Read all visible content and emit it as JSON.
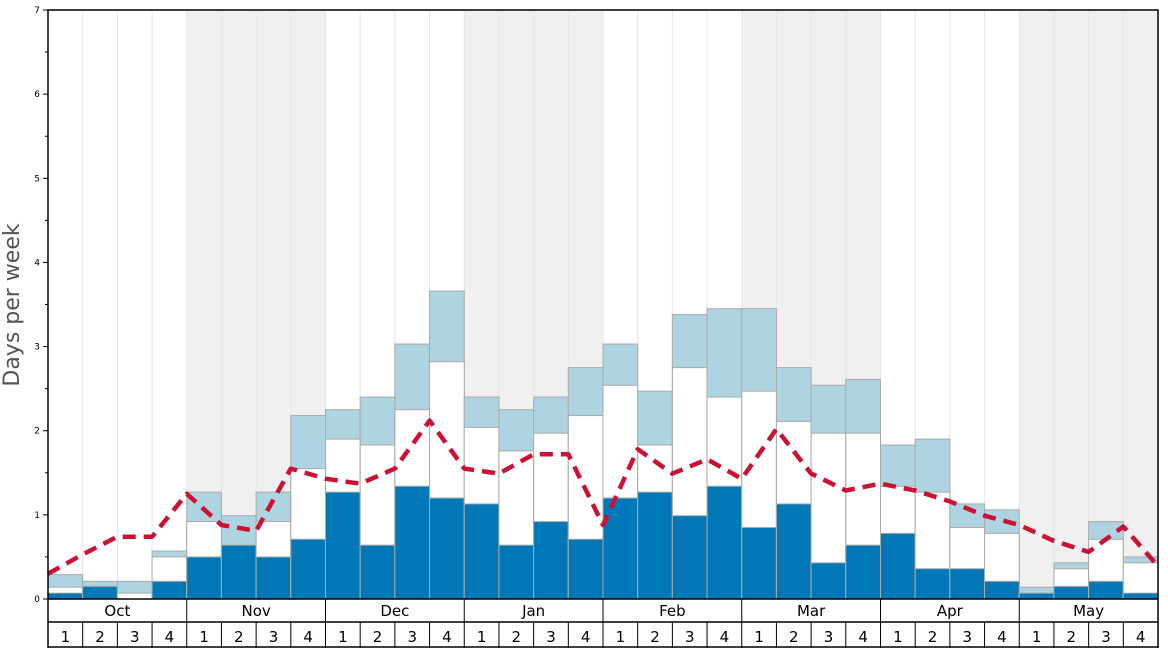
{
  "chart_data": {
    "type": "bar",
    "ylabel": "Days per week",
    "ylim": [
      0,
      7
    ],
    "yticks": [
      "0",
      "1",
      "2",
      "3",
      "4",
      "5",
      "6",
      "7"
    ],
    "months": [
      "Oct",
      "Nov",
      "Dec",
      "Jan",
      "Feb",
      "Mar",
      "Apr",
      "May"
    ],
    "weeks": [
      "1",
      "2",
      "3",
      "4"
    ],
    "colors": {
      "lower": "#0077b6",
      "middle": "#ffffff",
      "upper": "#add4e0",
      "line": "#cc1133",
      "shade": "#f0f0f0",
      "bar_edge": "#aaaaaa"
    },
    "series": [
      {
        "values": [
          0.07,
          0.15,
          0.0,
          0.21,
          0.5,
          0.64,
          0.5,
          0.71,
          1.27,
          0.64,
          1.34,
          1.2,
          1.13,
          0.64,
          0.92,
          0.71,
          1.2,
          1.27,
          0.99,
          1.34,
          0.85,
          1.13,
          0.43,
          0.64,
          0.78,
          0.36,
          0.36,
          0.21,
          0.07,
          0.15,
          0.21,
          0.07
        ]
      },
      {
        "values": [
          0.14,
          0.15,
          0.07,
          0.5,
          0.92,
          0.64,
          0.92,
          1.55,
          1.9,
          1.83,
          2.25,
          2.82,
          2.04,
          1.76,
          1.97,
          2.18,
          2.54,
          1.83,
          2.75,
          2.4,
          2.47,
          2.11,
          1.97,
          1.97,
          1.34,
          1.27,
          0.85,
          0.78,
          0.07,
          0.36,
          0.71,
          0.43
        ]
      },
      {
        "values": [
          0.29,
          0.21,
          0.21,
          0.57,
          1.27,
          0.99,
          1.27,
          2.18,
          2.25,
          2.4,
          3.03,
          3.66,
          2.4,
          2.25,
          2.4,
          2.75,
          3.03,
          2.47,
          3.38,
          3.45,
          3.45,
          2.75,
          2.54,
          2.61,
          1.83,
          1.9,
          1.13,
          1.06,
          0.14,
          0.43,
          0.92,
          0.5
        ]
      },
      {
        "values": [
          0.3,
          0.53,
          0.74,
          0.74,
          1.25,
          0.88,
          0.81,
          1.55,
          1.43,
          1.37,
          1.55,
          2.12,
          1.55,
          1.49,
          1.72,
          1.72,
          0.88,
          1.78,
          1.49,
          1.66,
          1.43,
          2.02,
          1.49,
          1.29,
          1.37,
          1.29,
          1.16,
          0.99,
          0.88,
          0.69,
          0.56,
          0.86,
          0.39
        ]
      }
    ]
  }
}
